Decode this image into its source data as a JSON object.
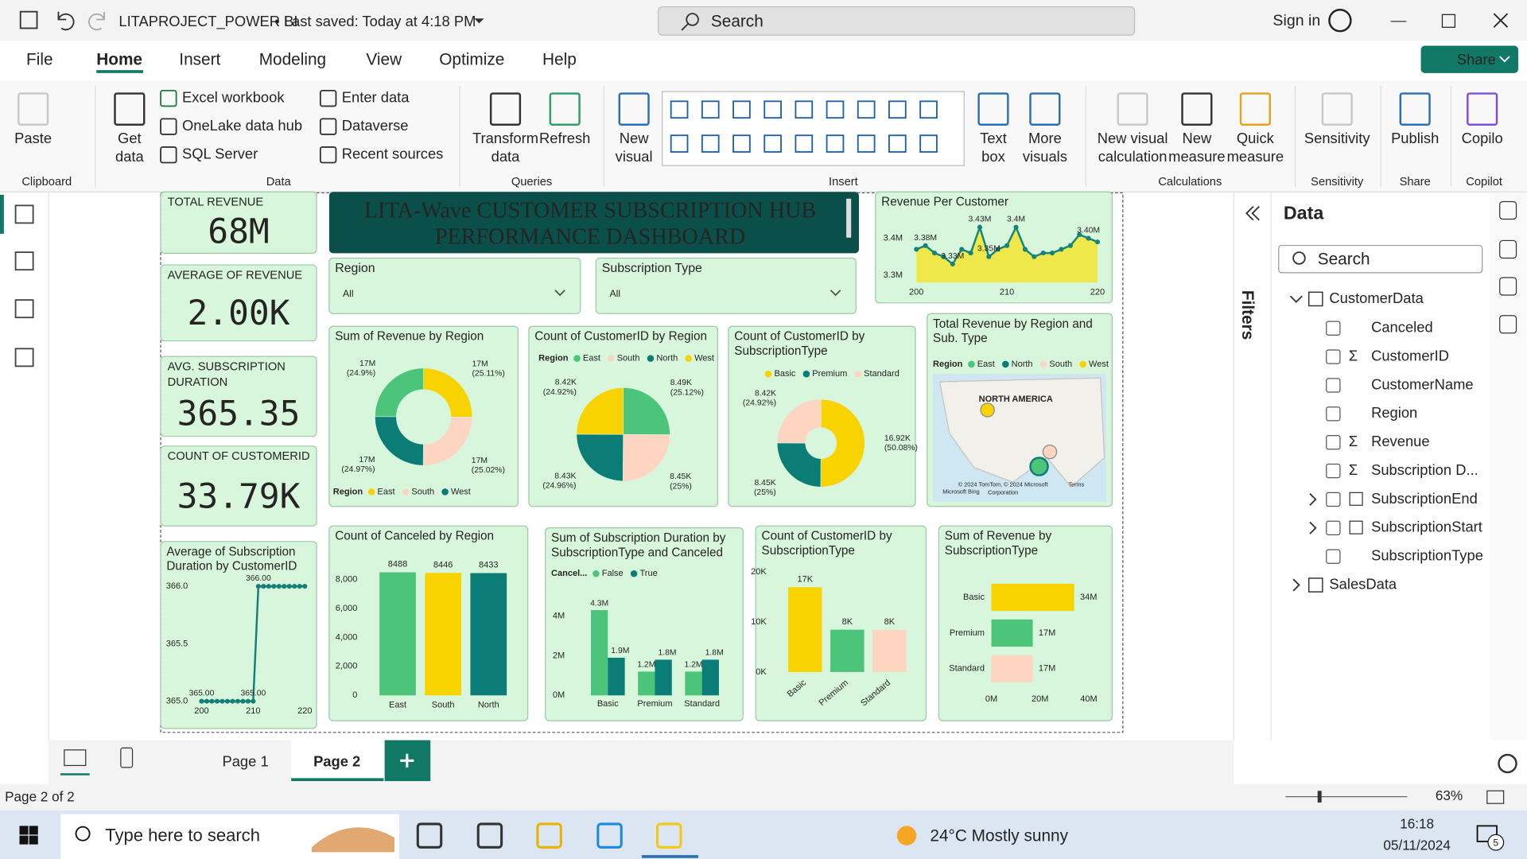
{
  "title_bar": {
    "document": "LITAPROJECT_POWER BI",
    "saved": "• Last saved: Today at 4:18 PM",
    "search": "Search",
    "sign_in": "Sign in"
  },
  "menu": {
    "tabs": [
      "File",
      "Home",
      "Insert",
      "Modeling",
      "View",
      "Optimize",
      "Help"
    ],
    "share": "Share"
  },
  "ribbon": {
    "large_buttons": [
      {
        "lines": [
          "Paste"
        ]
      },
      {
        "lines": [
          "Get",
          "data"
        ]
      },
      {
        "lines": [
          "Transform",
          "data"
        ]
      },
      {
        "lines": [
          "Refresh"
        ]
      },
      {
        "lines": [
          "New",
          "visual"
        ]
      },
      {
        "lines": [
          "Text",
          "box"
        ]
      },
      {
        "lines": [
          "More",
          "visuals"
        ]
      },
      {
        "lines": [
          "New visual",
          "calculation"
        ]
      },
      {
        "lines": [
          "New",
          "measure"
        ]
      },
      {
        "lines": [
          "Quick",
          "measure"
        ]
      },
      {
        "lines": [
          "Sensitivity"
        ]
      },
      {
        "lines": [
          "Publish"
        ]
      },
      {
        "lines": [
          "Copilo"
        ]
      }
    ],
    "small_buttons": [
      "Excel workbook",
      "OneLake data hub",
      "SQL Server",
      "Enter data",
      "Dataverse",
      "Recent sources"
    ],
    "groups": [
      "Clipboard",
      "Data",
      "Queries",
      "Insert",
      "Calculations",
      "Sensitivity",
      "Share",
      "Copilot"
    ]
  },
  "dashboard": {
    "kpis": [
      {
        "label": [
          "TOTAL REVENUE"
        ],
        "value": "68M"
      },
      {
        "label": [
          "AVERAGE OF REVENUE"
        ],
        "value": "2.00K"
      },
      {
        "label": [
          "AVG. SUBSCRIPTION",
          "DURATION"
        ],
        "value": "365.35"
      },
      {
        "label": [
          "COUNT OF CUSTOMERID"
        ],
        "value": "33.79K"
      }
    ],
    "banner": [
      "LITA-Wave CUSTOMER SUBSCRIPTION HUB",
      "PERFORMANCE DASHBOARD"
    ],
    "slicers": [
      {
        "label": "Region",
        "value": "All"
      },
      {
        "label": "Subscription Type",
        "value": "All"
      }
    ],
    "visuals": [
      {
        "type": "line",
        "title": [
          "Revenue Per Customer"
        ],
        "x": [
          200,
          201,
          202,
          203,
          204,
          205,
          206,
          207,
          208,
          209,
          210,
          211,
          212,
          213,
          214,
          215,
          216,
          217,
          218,
          219,
          220
        ],
        "values": [
          3370000,
          3380000,
          3360000,
          3350000,
          3330000,
          3370000,
          3360000,
          3430000,
          3350000,
          3370000,
          3380000,
          3430000,
          3370000,
          3350000,
          3360000,
          3360000,
          3370000,
          3380000,
          3410000,
          3400000,
          3390000
        ],
        "value_labels": [
          null,
          "3.38M",
          null,
          null,
          "3.33M",
          null,
          null,
          "3.43M",
          "3.35M",
          null,
          null,
          "3.4M",
          null,
          null,
          null,
          null,
          null,
          null,
          null,
          "3.40M",
          null
        ],
        "xlim": [
          200,
          220
        ],
        "xticks": [
          200,
          210,
          220
        ],
        "ylim": [
          3280000,
          3460000
        ],
        "yticks": [
          {
            "value": 3300000,
            "label": "3.3M"
          },
          {
            "value": 3400000,
            "label": "3.4M"
          }
        ],
        "color": "#14837b",
        "area_color": "#efe84a"
      },
      {
        "type": "donut",
        "title": [
          "Sum of Revenue by Region"
        ],
        "values": [
          25.11,
          25.02,
          24.97,
          24.9
        ],
        "value_labels": [
          "(25.11%)",
          "(25.02%)",
          "(24.97%)",
          "(24.9%)"
        ],
        "amounts": [
          "17M",
          "17M",
          "17M",
          "17M"
        ],
        "colors": [
          "#f8d300",
          "#fdd5c0",
          "#0b7c76",
          "#4cc47a"
        ],
        "legend_title": "Region",
        "legend": [
          {
            "name": "East",
            "color": "#f8d300"
          },
          {
            "name": "South",
            "color": "#fdd5c0"
          },
          {
            "name": "West",
            "color": "#0b7c76"
          }
        ]
      },
      {
        "type": "pie",
        "title": [
          "Count of CustomerID by Region"
        ],
        "values": [
          25.12,
          25,
          24.96,
          24.92
        ],
        "value_labels": [
          "(25.12%)",
          "(25%)",
          "(24.96%)",
          "(24.92%)"
        ],
        "amounts": [
          "8.49K",
          "8.45K",
          "8.43K",
          "8.42K"
        ],
        "colors": [
          "#4cc47a",
          "#fdd5c0",
          "#0b7c76",
          "#f8d300"
        ],
        "legend_title": "Region",
        "legend": [
          {
            "name": "East",
            "color": "#4cc47a"
          },
          {
            "name": "South",
            "color": "#fdd5c0"
          },
          {
            "name": "North",
            "color": "#0b7c76"
          },
          {
            "name": "West",
            "color": "#f8d300"
          }
        ]
      },
      {
        "type": "donut",
        "title": [
          "Count of CustomerID by",
          "SubscriptionType"
        ],
        "values": [
          50.08,
          25,
          24.92
        ],
        "value_labels": [
          "(50.08%)",
          "(25%)",
          "(24.92%)"
        ],
        "amounts": [
          "16.92K",
          "8.45K",
          "8.42K"
        ],
        "colors": [
          "#f8d300",
          "#0b7c76",
          "#fdd5c0"
        ],
        "legend": [
          {
            "name": "Basic",
            "color": "#f8d300"
          },
          {
            "name": "Premium",
            "color": "#0b7c76"
          },
          {
            "name": "Standard",
            "color": "#fdd5c0"
          }
        ]
      },
      {
        "type": "map",
        "title": [
          "Total Revenue by Region and",
          "Sub. Type"
        ],
        "legend_title": "Region",
        "legend": [
          {
            "name": "East",
            "color": "#4cc47a"
          },
          {
            "name": "North",
            "color": "#0b7c76"
          },
          {
            "name": "South",
            "color": "#fdd5c0"
          },
          {
            "name": "West",
            "color": "#f8d300"
          }
        ],
        "map_label": "NORTH AMERICA",
        "attribution": [
          "© 2024 TomTom, © 2024 Microsoft",
          "Corporation"
        ],
        "terms": "Terms",
        "provider": "Microsoft Bing"
      },
      {
        "type": "line",
        "title": [
          "Average of Subscription",
          "Duration by CustomerID"
        ],
        "x": [
          200,
          201,
          202,
          203,
          204,
          205,
          206,
          207,
          208,
          209,
          210,
          211,
          212,
          213,
          214,
          215,
          216,
          217,
          218,
          219,
          220
        ],
        "values": [
          365,
          365,
          365,
          365,
          365,
          365,
          365,
          365,
          365,
          365,
          365,
          366,
          366,
          366,
          366,
          366,
          366,
          366,
          366,
          366,
          366
        ],
        "value_labels": [
          "365.00",
          null,
          null,
          null,
          null,
          null,
          null,
          null,
          null,
          null,
          "365.00",
          "366.00",
          null,
          null,
          null,
          null,
          null,
          null,
          null,
          null,
          null
        ],
        "xlim": [
          200,
          220
        ],
        "xticks": [
          200,
          210,
          220
        ],
        "ylim": [
          365,
          366
        ],
        "yticks": [
          {
            "value": 365,
            "label": "365.0"
          },
          {
            "value": 365.5,
            "label": "365.5"
          },
          {
            "value": 366,
            "label": "366.0"
          }
        ],
        "color": "#137f79"
      },
      {
        "type": "bar",
        "title": [
          "Count of Canceled by Region"
        ],
        "categories": [
          "East",
          "South",
          "North"
        ],
        "values": [
          8488,
          8446,
          8433
        ],
        "colors": [
          "#4cc47a",
          "#f8d300",
          "#0b7c76"
        ],
        "ylim": [
          0,
          9000
        ],
        "yticks": [
          0,
          {
            "value": 2000,
            "label": "2,000"
          },
          {
            "value": 4000,
            "label": "4,000"
          },
          {
            "value": 6000,
            "label": "6,000"
          },
          {
            "value": 8000,
            "label": "8,000"
          }
        ]
      },
      {
        "type": "grouped_bar",
        "title": [
          "Sum of Subscription Duration by",
          "SubscriptionType and Canceled"
        ],
        "legend_title": "Cancel...",
        "categories": [
          "Basic",
          "Premium",
          "Standard"
        ],
        "series": [
          {
            "name": "False",
            "color": "#4cc47a",
            "values": [
              4300000,
              1200000,
              1200000
            ],
            "value_labels": [
              "4.3M",
              "1.2M",
              "1.2M"
            ]
          },
          {
            "name": "True",
            "color": "#0b7c76",
            "values": [
              1900000,
              1800000,
              1800000
            ],
            "value_labels": [
              "1.9M",
              "1.8M",
              "1.8M"
            ]
          }
        ],
        "ylim": [
          0,
          5600000
        ],
        "yticks": [
          {
            "value": 0,
            "label": "0M"
          },
          {
            "value": 2000000,
            "label": "2M"
          },
          {
            "value": 4000000,
            "label": "4M"
          }
        ]
      },
      {
        "type": "bar",
        "title": [
          "Count of CustomerID by",
          "SubscriptionType"
        ],
        "categories": [
          "Basic",
          "Premium",
          "Standard"
        ],
        "values": [
          16920,
          8450,
          8420
        ],
        "value_labels": [
          "17K",
          "8K",
          "8K"
        ],
        "colors": [
          "#f8d300",
          "#4cc47a",
          "#fdd5c0"
        ],
        "ylim": [
          0,
          21000
        ],
        "yticks": [
          {
            "value": 0,
            "label": "0K"
          },
          {
            "value": 10000,
            "label": "10K"
          },
          {
            "value": 20000,
            "label": "20K"
          }
        ]
      },
      {
        "type": "hbar",
        "title": [
          "Sum of Revenue by",
          "SubscriptionType"
        ],
        "categories": [
          "Basic",
          "Premium",
          "Standard"
        ],
        "values": [
          34000000,
          17000000,
          17000000
        ],
        "value_labels": [
          "34M",
          "17M",
          "17M"
        ],
        "colors": [
          "#f8d300",
          "#4cc47a",
          "#fdd5c0"
        ],
        "xlim": [
          0,
          40000000
        ],
        "xticks": [
          {
            "value": 0,
            "label": "0M"
          },
          {
            "value": 20000000,
            "label": "20M"
          },
          {
            "value": 40000000,
            "label": "40M"
          }
        ]
      }
    ]
  },
  "filters": "Filters",
  "data_pane": {
    "title": "Data",
    "search": "Search",
    "tables": [
      {
        "name": "CustomerData",
        "fields": [
          {
            "name": "Canceled"
          },
          {
            "icon": "Σ",
            "name": "CustomerID"
          },
          {
            "name": "CustomerName"
          },
          {
            "name": "Region"
          },
          {
            "icon": "Σ",
            "name": "Revenue"
          },
          {
            "icon": "Σ",
            "name": "Subscription D..."
          },
          {
            "name": "SubscriptionEnd"
          },
          {
            "name": "SubscriptionStart"
          },
          {
            "name": "SubscriptionType"
          }
        ]
      },
      {
        "name": "SalesData"
      }
    ]
  },
  "pages": {
    "tabs": [
      "Page 1",
      "Page 2"
    ],
    "status": "Page 2 of 2",
    "zoom": "63%"
  },
  "taskbar": {
    "search": "Type here to search",
    "weather": "24°C Mostly sunny",
    "time": "16:18",
    "date": "05/11/2024",
    "notifications": 5
  }
}
